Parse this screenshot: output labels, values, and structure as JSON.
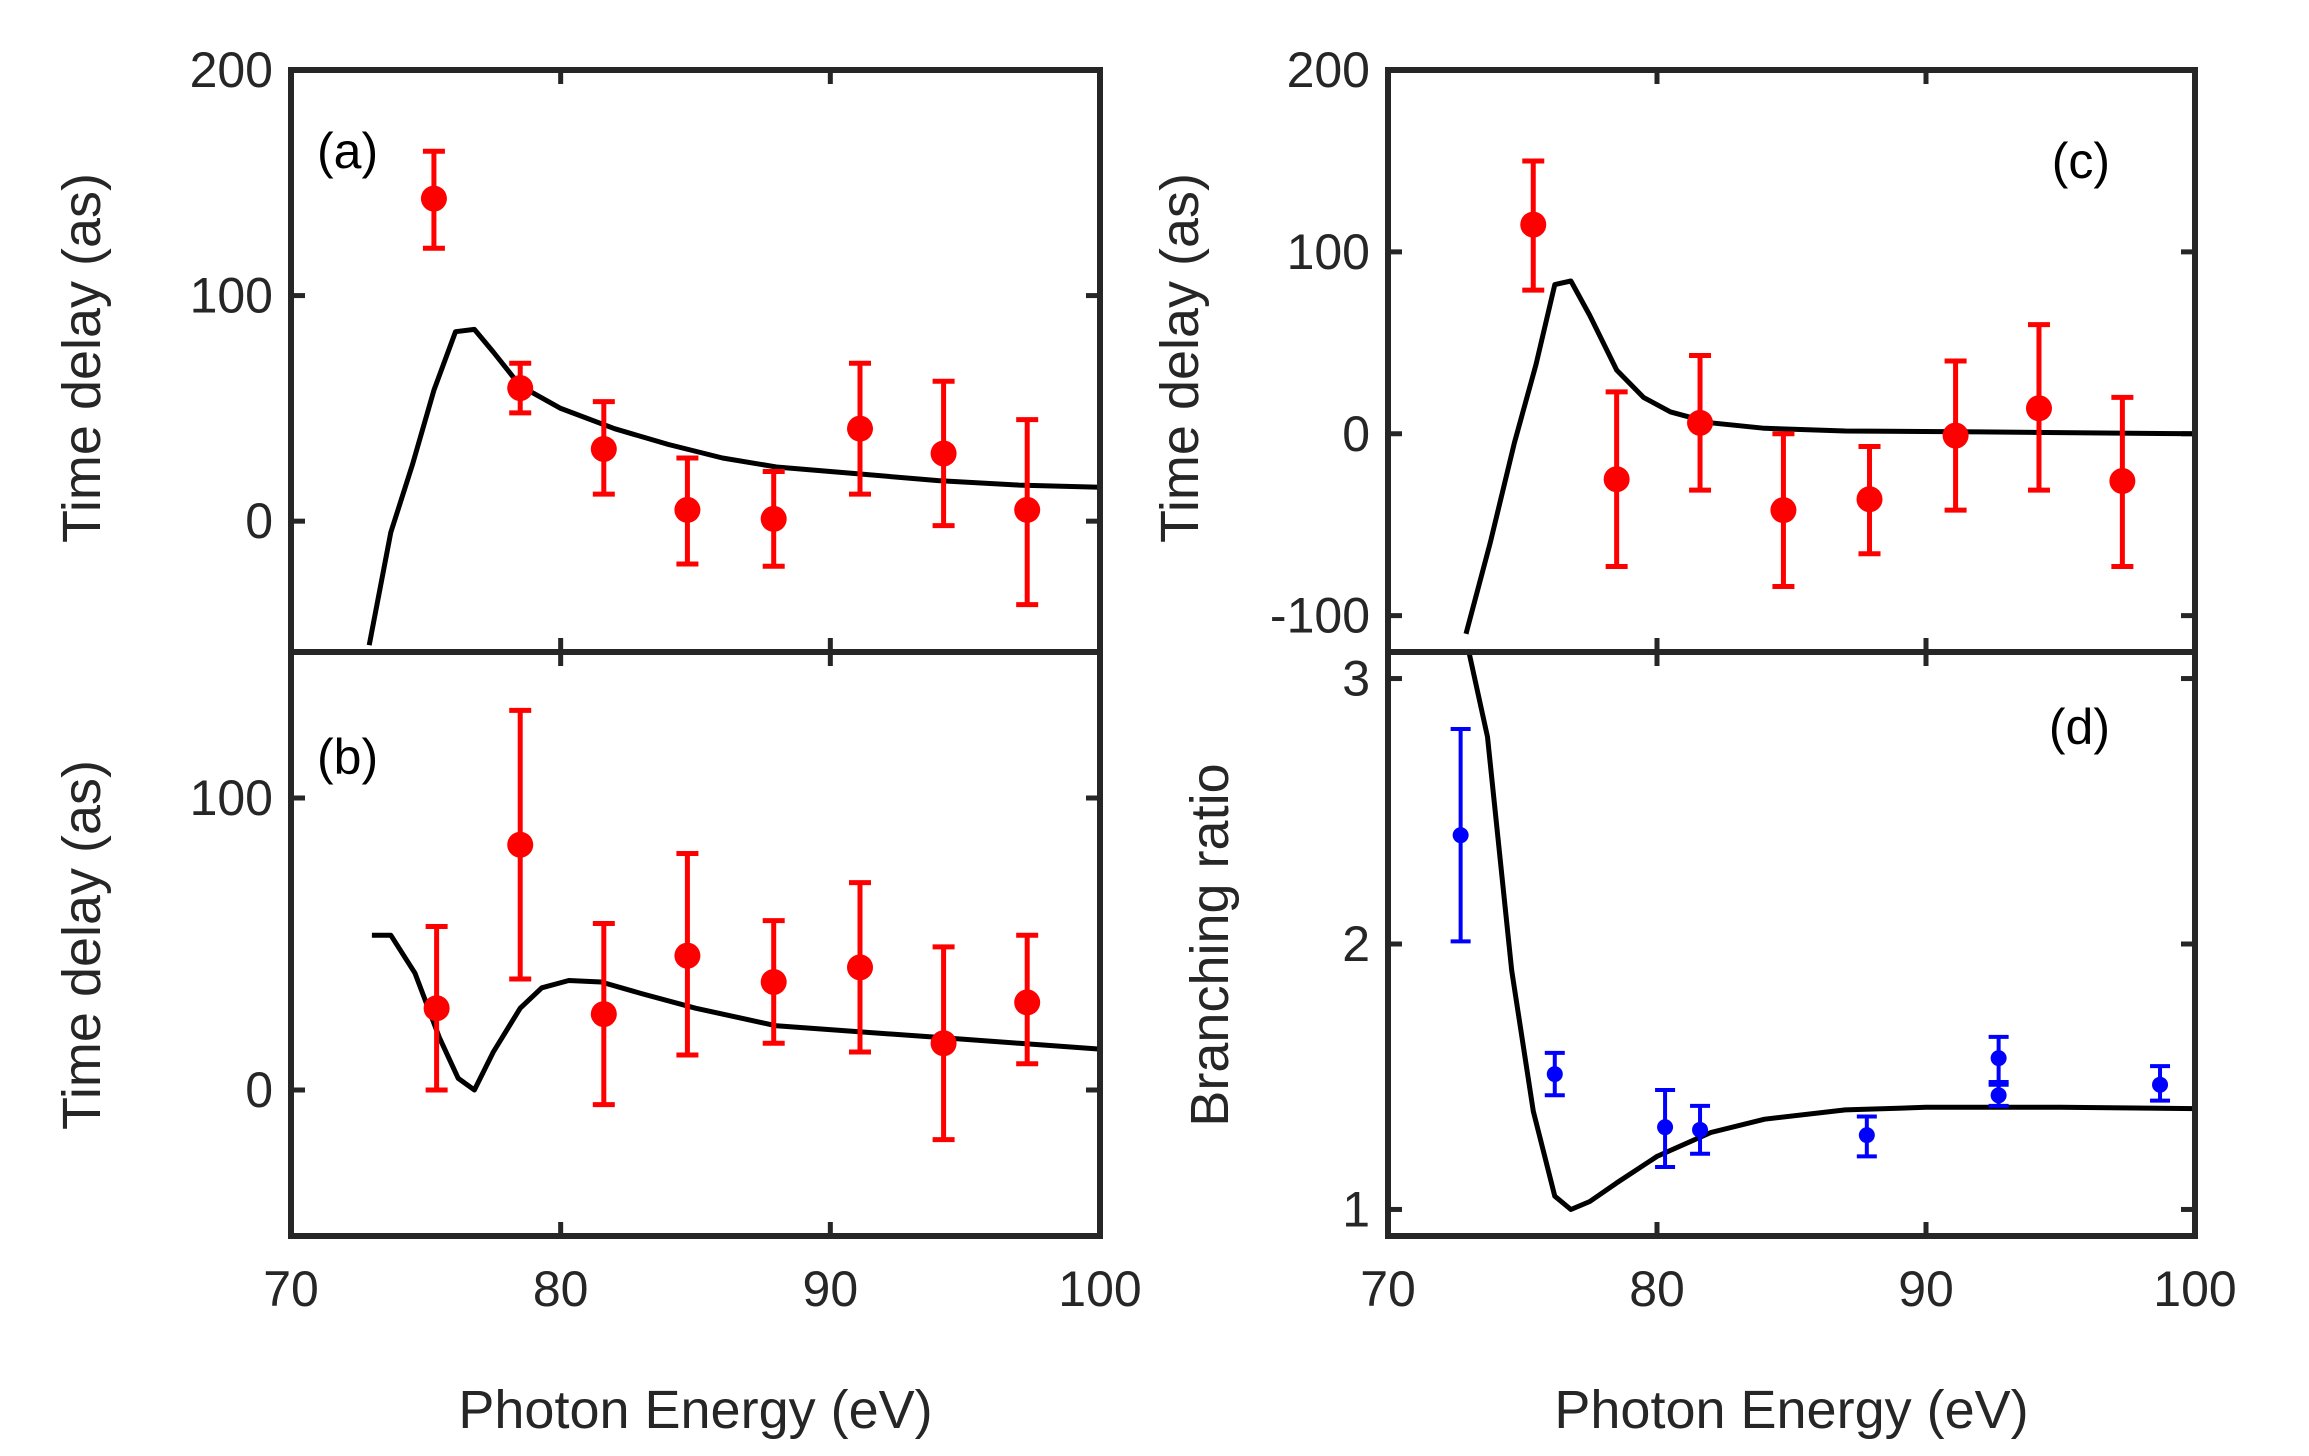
{
  "chart_data": [
    {
      "id": "a",
      "type": "scatter",
      "panel_label": "(a)",
      "ylabel": "Time delay (as)",
      "xlabel": "",
      "xlim": [
        70,
        100
      ],
      "ylim": [
        -58,
        200
      ],
      "xticks": [
        "70",
        "80",
        "90",
        "100"
      ],
      "yticks": [
        {
          "v": 0,
          "t": "0"
        },
        {
          "v": 100,
          "t": "100"
        },
        {
          "v": 200,
          "t": "200"
        }
      ],
      "color": "#ff0000",
      "points": [
        {
          "x": 75.3,
          "y": 143,
          "lo": 121,
          "hi": 164
        },
        {
          "x": 78.5,
          "y": 59,
          "lo": 48,
          "hi": 70
        },
        {
          "x": 81.6,
          "y": 32,
          "lo": 12,
          "hi": 53
        },
        {
          "x": 84.7,
          "y": 5,
          "lo": -19,
          "hi": 28
        },
        {
          "x": 87.9,
          "y": 1,
          "lo": -20,
          "hi": 22
        },
        {
          "x": 91.1,
          "y": 41,
          "lo": 12,
          "hi": 70
        },
        {
          "x": 94.2,
          "y": 30,
          "lo": -2,
          "hi": 62
        },
        {
          "x": 97.3,
          "y": 5,
          "lo": -37,
          "hi": 45
        }
      ],
      "curve": [
        [
          72.9,
          -55
        ],
        [
          73.7,
          -5
        ],
        [
          74.5,
          25
        ],
        [
          75.3,
          58
        ],
        [
          76.1,
          84
        ],
        [
          76.8,
          85
        ],
        [
          77.5,
          75
        ],
        [
          78.5,
          60
        ],
        [
          80,
          50
        ],
        [
          82,
          41
        ],
        [
          84,
          34
        ],
        [
          86,
          28
        ],
        [
          88,
          24
        ],
        [
          91,
          21
        ],
        [
          94,
          18
        ],
        [
          97,
          16
        ],
        [
          100,
          15
        ]
      ]
    },
    {
      "id": "b",
      "type": "scatter",
      "panel_label": "(b)",
      "ylabel": "Time delay (as)",
      "xlabel": "Photon Energy (eV)",
      "xlim": [
        70,
        100
      ],
      "ylim": [
        -50,
        150
      ],
      "xticks": [
        "70",
        "80",
        "90",
        "100"
      ],
      "yticks": [
        {
          "v": 0,
          "t": "0"
        },
        {
          "v": 100,
          "t": "100"
        }
      ],
      "color": "#ff0000",
      "points": [
        {
          "x": 75.4,
          "y": 28,
          "lo": 0,
          "hi": 56
        },
        {
          "x": 78.5,
          "y": 84,
          "lo": 38,
          "hi": 130
        },
        {
          "x": 81.6,
          "y": 26,
          "lo": -5,
          "hi": 57
        },
        {
          "x": 84.7,
          "y": 46,
          "lo": 12,
          "hi": 81
        },
        {
          "x": 87.9,
          "y": 37,
          "lo": 16,
          "hi": 58
        },
        {
          "x": 91.1,
          "y": 42,
          "lo": 13,
          "hi": 71
        },
        {
          "x": 94.2,
          "y": 16,
          "lo": -17,
          "hi": 49
        },
        {
          "x": 97.3,
          "y": 30,
          "lo": 9,
          "hi": 53
        }
      ],
      "curve": [
        [
          73.0,
          53
        ],
        [
          73.7,
          53
        ],
        [
          74.6,
          40
        ],
        [
          75.5,
          18
        ],
        [
          76.2,
          4
        ],
        [
          76.8,
          0
        ],
        [
          77.5,
          13
        ],
        [
          78.5,
          28
        ],
        [
          79.3,
          35
        ],
        [
          80.3,
          37.5
        ],
        [
          81.5,
          37
        ],
        [
          83,
          33
        ],
        [
          85,
          28
        ],
        [
          88,
          22
        ],
        [
          91,
          20
        ],
        [
          94,
          18
        ],
        [
          97,
          16
        ],
        [
          100,
          14
        ]
      ]
    },
    {
      "id": "c",
      "type": "scatter",
      "panel_label": "(c)",
      "ylabel": "Time delay (as)",
      "xlabel": "",
      "xlim": [
        70,
        100
      ],
      "ylim": [
        -120,
        200
      ],
      "xticks": [
        "70",
        "80",
        "90",
        "100"
      ],
      "yticks": [
        {
          "v": -100,
          "t": "-100"
        },
        {
          "v": 0,
          "t": "0"
        },
        {
          "v": 100,
          "t": "100"
        },
        {
          "v": 200,
          "t": "200"
        }
      ],
      "color": "#ff0000",
      "points": [
        {
          "x": 75.4,
          "y": 115,
          "lo": 79,
          "hi": 150
        },
        {
          "x": 78.5,
          "y": -25,
          "lo": -73,
          "hi": 23
        },
        {
          "x": 81.6,
          "y": 6,
          "lo": -31,
          "hi": 43
        },
        {
          "x": 84.7,
          "y": -42,
          "lo": -84,
          "hi": 0
        },
        {
          "x": 87.9,
          "y": -36,
          "lo": -66,
          "hi": -7
        },
        {
          "x": 91.1,
          "y": -1,
          "lo": -42,
          "hi": 40
        },
        {
          "x": 94.2,
          "y": 14,
          "lo": -31,
          "hi": 60
        },
        {
          "x": 97.3,
          "y": -26,
          "lo": -73,
          "hi": 20
        }
      ],
      "curve": [
        [
          72.9,
          -110
        ],
        [
          73.8,
          -60
        ],
        [
          74.7,
          -5
        ],
        [
          75.5,
          38
        ],
        [
          76.2,
          82
        ],
        [
          76.8,
          84
        ],
        [
          77.5,
          65
        ],
        [
          78.5,
          35
        ],
        [
          79.5,
          20
        ],
        [
          80.5,
          12
        ],
        [
          82,
          6
        ],
        [
          84,
          3
        ],
        [
          87,
          1.5
        ],
        [
          92,
          1
        ],
        [
          100,
          0
        ]
      ]
    },
    {
      "id": "d",
      "type": "scatter",
      "panel_label": "(d)",
      "ylabel": "Branching ratio",
      "xlabel": "Photon Energy (eV)",
      "xlim": [
        70,
        100
      ],
      "ylim": [
        0.9,
        3.1
      ],
      "xticks": [
        "70",
        "80",
        "90",
        "100"
      ],
      "yticks": [
        {
          "v": 1,
          "t": "1"
        },
        {
          "v": 2,
          "t": "2"
        },
        {
          "v": 3,
          "t": "3"
        }
      ],
      "color": "#0000ff",
      "points": [
        {
          "x": 72.7,
          "y": 2.41,
          "lo": 2.01,
          "hi": 2.81
        },
        {
          "x": 76.2,
          "y": 1.51,
          "lo": 1.43,
          "hi": 1.59
        },
        {
          "x": 80.3,
          "y": 1.31,
          "lo": 1.16,
          "hi": 1.45
        },
        {
          "x": 81.6,
          "y": 1.3,
          "lo": 1.21,
          "hi": 1.39
        },
        {
          "x": 87.8,
          "y": 1.28,
          "lo": 1.2,
          "hi": 1.35
        },
        {
          "x": 92.7,
          "y": 1.57,
          "lo": 1.48,
          "hi": 1.65
        },
        {
          "x": 92.7,
          "y": 1.43,
          "lo": 1.39,
          "hi": 1.47
        },
        {
          "x": 98.7,
          "y": 1.47,
          "lo": 1.41,
          "hi": 1.54
        }
      ],
      "curve": [
        [
          72.9,
          3.15
        ],
        [
          73.7,
          2.78
        ],
        [
          74.6,
          1.9
        ],
        [
          75.4,
          1.37
        ],
        [
          76.2,
          1.05
        ],
        [
          76.8,
          1.0
        ],
        [
          77.5,
          1.03
        ],
        [
          78.5,
          1.1
        ],
        [
          80,
          1.2
        ],
        [
          82,
          1.29
        ],
        [
          84,
          1.34
        ],
        [
          87,
          1.375
        ],
        [
          90,
          1.385
        ],
        [
          95,
          1.385
        ],
        [
          100,
          1.38
        ]
      ]
    }
  ]
}
